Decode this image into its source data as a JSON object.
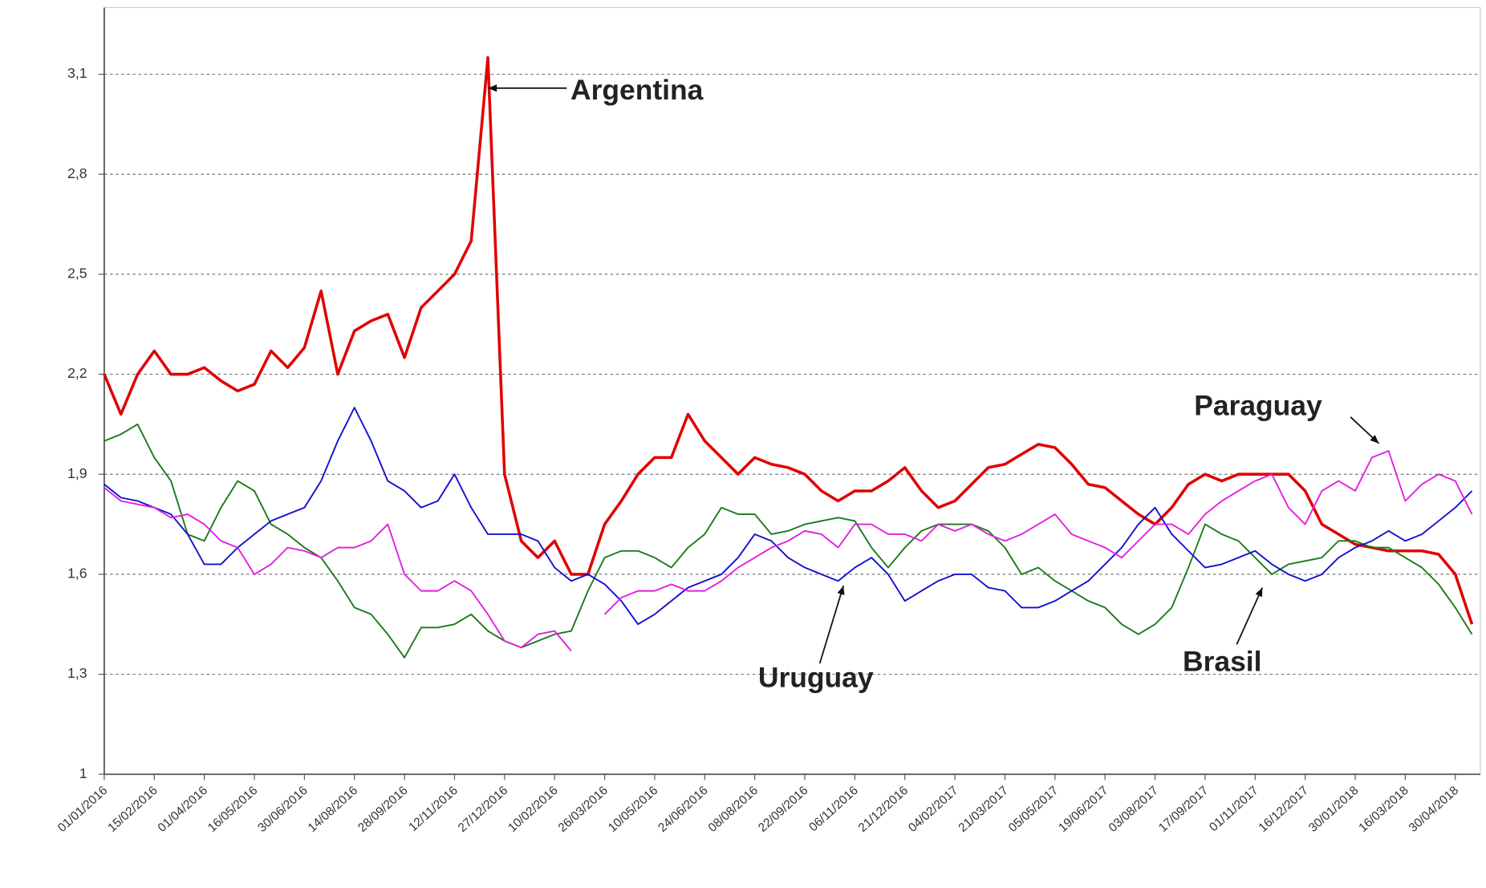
{
  "chart_data": {
    "type": "line",
    "categories": [
      "01/01/2016",
      null,
      null,
      "15/02/2016",
      null,
      null,
      "01/04/2016",
      null,
      null,
      "16/05/2016",
      null,
      null,
      "30/06/2016",
      null,
      null,
      "14/08/2016",
      null,
      null,
      "28/09/2016",
      null,
      null,
      "12/11/2016",
      null,
      null,
      "27/12/2016",
      null,
      null,
      "10/02/2016",
      null,
      null,
      "26/03/2016",
      null,
      null,
      "10/05/2016",
      null,
      null,
      "24/06/2016",
      null,
      null,
      "08/08/2016",
      null,
      null,
      "22/09/2016",
      null,
      null,
      "06/11/2016",
      null,
      null,
      "21/12/2016",
      null,
      null,
      "04/02/2017",
      null,
      null,
      "21/03/2017",
      null,
      null,
      "05/05/2017",
      null,
      null,
      "19/06/2017",
      null,
      null,
      "03/08/2017",
      null,
      null,
      "17/09/2017",
      null,
      null,
      "01/11/2017",
      null,
      null,
      "16/12/2017",
      null,
      null,
      "30/01/2018",
      null,
      null,
      "16/03/2018",
      null,
      null,
      "30/04/2018",
      null
    ],
    "series": [
      {
        "name": "Argentina",
        "color": "#e00000",
        "values": [
          2.2,
          2.08,
          2.2,
          2.27,
          2.2,
          2.2,
          2.22,
          2.18,
          2.15,
          2.17,
          2.27,
          2.22,
          2.28,
          2.45,
          2.2,
          2.33,
          2.36,
          2.38,
          2.25,
          2.4,
          2.45,
          2.5,
          2.6,
          3.15,
          1.9,
          1.7,
          1.65,
          1.7,
          1.6,
          1.6,
          1.75,
          1.82,
          1.9,
          1.95,
          1.95,
          2.08,
          2.0,
          1.95,
          1.9,
          1.95,
          1.93,
          1.92,
          1.9,
          1.85,
          1.82,
          1.85,
          1.85,
          1.88,
          1.92,
          1.85,
          1.8,
          1.82,
          1.87,
          1.92,
          1.93,
          1.96,
          1.99,
          1.98,
          1.93,
          1.87,
          1.86,
          1.82,
          1.78,
          1.75,
          1.8,
          1.87,
          1.9,
          1.88,
          1.9,
          1.9,
          1.9,
          1.9,
          1.85,
          1.75,
          1.72,
          1.69,
          1.68,
          1.67,
          1.67,
          1.67,
          1.66,
          1.6,
          1.45
        ]
      },
      {
        "name": "Brasil",
        "color": "#1a7a1a",
        "values": [
          2.0,
          2.02,
          2.05,
          1.95,
          1.88,
          1.72,
          1.7,
          1.8,
          1.88,
          1.85,
          1.75,
          1.72,
          1.68,
          1.65,
          1.58,
          1.5,
          1.48,
          1.42,
          1.35,
          1.44,
          1.44,
          1.45,
          1.48,
          1.43,
          1.4,
          1.38,
          1.4,
          1.42,
          1.43,
          1.55,
          1.65,
          1.67,
          1.67,
          1.65,
          1.62,
          1.68,
          1.72,
          1.8,
          1.78,
          1.78,
          1.72,
          1.73,
          1.75,
          1.76,
          1.77,
          1.76,
          1.68,
          1.62,
          1.68,
          1.73,
          1.75,
          1.75,
          1.75,
          1.73,
          1.68,
          1.6,
          1.62,
          1.58,
          1.55,
          1.52,
          1.5,
          1.45,
          1.42,
          1.45,
          1.5,
          1.62,
          1.75,
          1.72,
          1.7,
          1.65,
          1.6,
          1.63,
          1.64,
          1.65,
          1.7,
          1.7,
          1.68,
          1.68,
          1.65,
          1.62,
          1.57,
          1.5,
          1.42
        ]
      },
      {
        "name": "Uruguay",
        "color": "#1010d0",
        "values": [
          1.87,
          1.83,
          1.82,
          1.8,
          1.78,
          1.72,
          1.63,
          1.63,
          1.68,
          1.72,
          1.76,
          1.78,
          1.8,
          1.88,
          2.0,
          2.1,
          2.0,
          1.88,
          1.85,
          1.8,
          1.82,
          1.9,
          1.8,
          1.72,
          1.72,
          1.72,
          1.7,
          1.62,
          1.58,
          1.6,
          1.57,
          1.52,
          1.45,
          1.48,
          1.52,
          1.56,
          1.58,
          1.6,
          1.65,
          1.72,
          1.7,
          1.65,
          1.62,
          1.6,
          1.58,
          1.62,
          1.65,
          1.6,
          1.52,
          1.55,
          1.58,
          1.6,
          1.6,
          1.56,
          1.55,
          1.5,
          1.5,
          1.52,
          1.55,
          1.58,
          1.63,
          1.68,
          1.75,
          1.8,
          1.72,
          1.67,
          1.62,
          1.63,
          1.65,
          1.67,
          1.63,
          1.6,
          1.58,
          1.6,
          1.65,
          1.68,
          1.7,
          1.73,
          1.7,
          1.72,
          1.76,
          1.8,
          1.85
        ]
      },
      {
        "name": "Paraguay",
        "color": "#e020e0",
        "values": [
          1.86,
          1.82,
          1.81,
          1.8,
          1.77,
          1.78,
          1.75,
          1.7,
          1.68,
          1.6,
          1.63,
          1.68,
          1.67,
          1.65,
          1.68,
          1.68,
          1.7,
          1.75,
          1.6,
          1.55,
          1.55,
          1.58,
          1.55,
          1.48,
          1.4,
          1.38,
          1.42,
          1.43,
          1.37,
          null,
          1.48,
          1.53,
          1.55,
          1.55,
          1.57,
          1.55,
          1.55,
          1.58,
          1.62,
          1.65,
          1.68,
          1.7,
          1.73,
          1.72,
          1.68,
          1.75,
          1.75,
          1.72,
          1.72,
          1.7,
          1.75,
          1.73,
          1.75,
          1.72,
          1.7,
          1.72,
          1.75,
          1.78,
          1.72,
          1.7,
          1.68,
          1.65,
          1.7,
          1.75,
          1.75,
          1.72,
          1.78,
          1.82,
          1.85,
          1.88,
          1.9,
          1.8,
          1.75,
          1.85,
          1.88,
          1.85,
          1.95,
          1.97,
          1.82,
          1.87,
          1.9,
          1.88,
          1.78
        ]
      }
    ],
    "ylim": [
      1,
      3.3
    ],
    "yticks": [
      1,
      {
        "value": 1.3,
        "label": "1,3"
      },
      {
        "value": 1.6,
        "label": "1,6"
      },
      {
        "value": 1.9,
        "label": "1,9"
      },
      {
        "value": 2.2,
        "label": "2,2"
      },
      {
        "value": 2.5,
        "label": "2,5"
      },
      {
        "value": 2.8,
        "label": "2,8"
      },
      {
        "value": 3.1,
        "label": "3,1"
      }
    ],
    "grid": true
  }
}
